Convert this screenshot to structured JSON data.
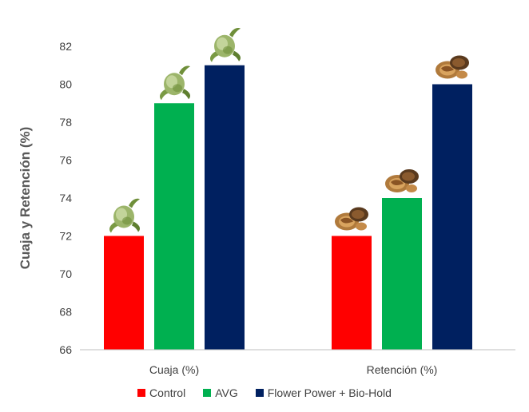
{
  "chart_data": {
    "type": "bar",
    "title": "",
    "xlabel": "",
    "ylabel": "Cuaja y Retención (%)",
    "ylim": [
      66,
      82
    ],
    "yticks": [
      66,
      68,
      70,
      72,
      74,
      76,
      78,
      80,
      82
    ],
    "categories": [
      "Cuaja (%)",
      "Retención (%)"
    ],
    "series": [
      {
        "name": "Control",
        "color": "#ff0000",
        "values": [
          72,
          72
        ]
      },
      {
        "name": "AVG",
        "color": "#00b050",
        "values": [
          79,
          74
        ]
      },
      {
        "name": "Flower Power + Bio-Hold",
        "color": "#002060",
        "values": [
          81,
          80
        ]
      }
    ],
    "grid": false,
    "legend_position": "bottom",
    "annotations": [
      {
        "category": "Cuaja (%)",
        "icon": "fruitlet-icon"
      },
      {
        "category": "Retención (%)",
        "icon": "walnut-icon"
      }
    ]
  }
}
